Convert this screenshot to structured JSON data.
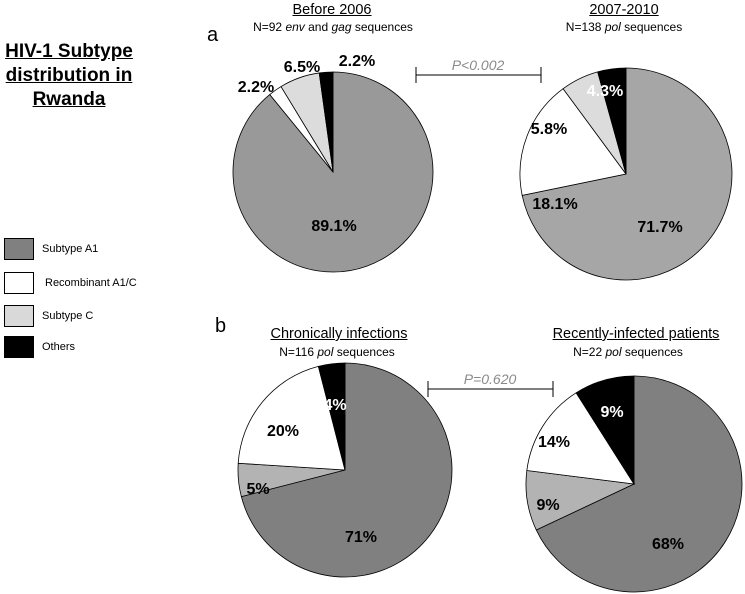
{
  "figure": {
    "title": "HIV-1 Subtype distribution in Rwanda",
    "panels": [
      {
        "letter": "a",
        "p_value": "P<0.002"
      },
      {
        "letter": "b",
        "p_value": "P=0.620"
      }
    ]
  },
  "legend": [
    {
      "label": "Subtype A1",
      "color": "#808080"
    },
    {
      "label": "Recombinant A1/C",
      "color": "#ffffff"
    },
    {
      "label": "Subtype C",
      "color": "#d9d9d9"
    },
    {
      "label": "Others",
      "color": "#000000"
    }
  ],
  "chart_data": [
    {
      "type": "pie",
      "title": "Before 2006",
      "subtitle": {
        "prefix": "N=92 ",
        "em1": "env",
        "mid": " and ",
        "em2": "gag",
        "suffix": " sequences"
      },
      "categories": [
        "Subtype A1",
        "Recombinant A1/C",
        "Subtype C",
        "Others"
      ],
      "values": [
        89.1,
        2.2,
        6.5,
        2.2
      ],
      "labels": [
        "89.1%",
        "2.2%",
        "6.5%",
        "2.2%"
      ],
      "colors": [
        "#999999",
        "#ffffff",
        "#dcdcdc",
        "#000000"
      ]
    },
    {
      "type": "pie",
      "title": "2007-2010",
      "subtitle": {
        "prefix": "N=138 ",
        "em1": "pol",
        "mid": "",
        "em2": "",
        "suffix": " sequences"
      },
      "categories": [
        "Subtype A1",
        "Recombinant A1/C",
        "Subtype C",
        "Others"
      ],
      "values": [
        71.7,
        18.1,
        5.8,
        4.3
      ],
      "labels": [
        "71.7%",
        "18.1%",
        "5.8%",
        "4.3%"
      ],
      "colors": [
        "#a6a6a6",
        "#ffffff",
        "#dcdcdc",
        "#000000"
      ]
    },
    {
      "type": "pie",
      "title": "Chronically infections",
      "subtitle": {
        "prefix": "N=116 ",
        "em1": "pol",
        "mid": "",
        "em2": "",
        "suffix": " sequences"
      },
      "categories": [
        "Subtype A1",
        "Subtype C",
        "Recombinant A1/C",
        "Others"
      ],
      "values": [
        71,
        5,
        20,
        4
      ],
      "labels": [
        "71%",
        "5%",
        "20%",
        "4%"
      ],
      "colors": [
        "#808080",
        "#b3b3b3",
        "#ffffff",
        "#000000"
      ]
    },
    {
      "type": "pie",
      "title": "Recently-infected patients",
      "subtitle": {
        "prefix": "N=22 ",
        "em1": "pol",
        "mid": "",
        "em2": "",
        "suffix": " sequences"
      },
      "categories": [
        "Subtype A1",
        "Subtype C",
        "Recombinant A1/C",
        "Others"
      ],
      "values": [
        68,
        9,
        14,
        9
      ],
      "labels": [
        "68%",
        "9%",
        "14%",
        "9%"
      ],
      "colors": [
        "#808080",
        "#b3b3b3",
        "#ffffff",
        "#000000"
      ]
    }
  ]
}
